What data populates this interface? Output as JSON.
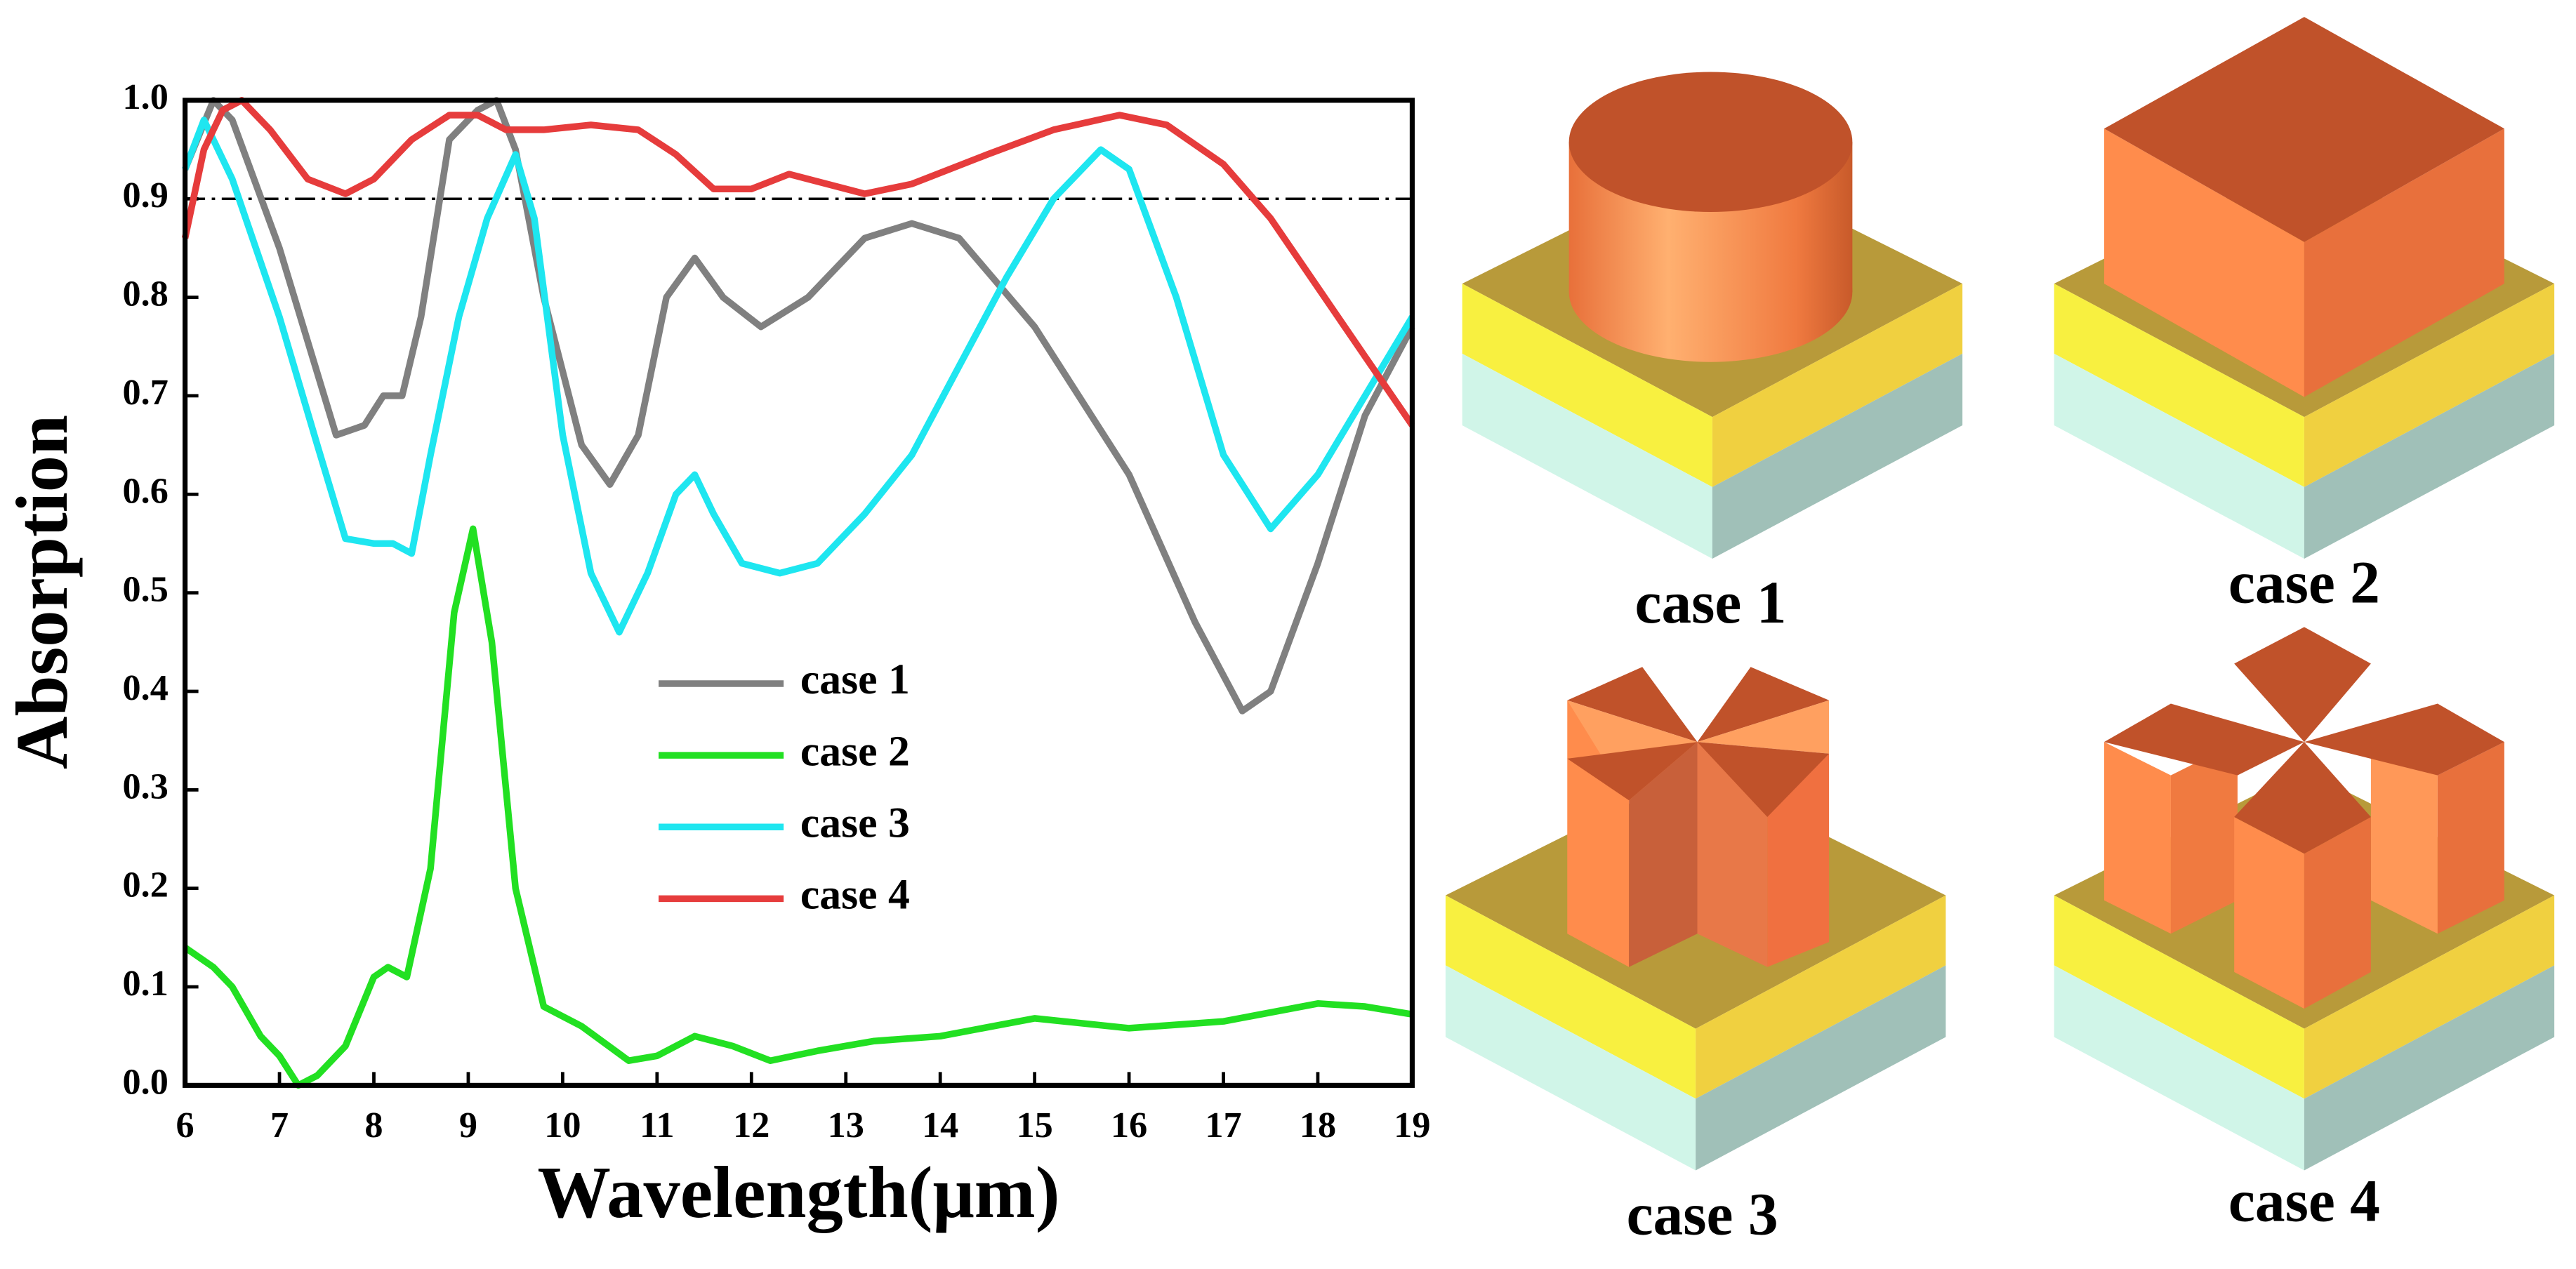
{
  "chart_data": {
    "type": "line",
    "xlabel": "Wavelength(μm)",
    "ylabel": "Absorption",
    "xlim": [
      6,
      19
    ],
    "xticks": [
      6,
      7,
      8,
      9,
      10,
      11,
      12,
      13,
      14,
      15,
      16,
      17,
      18,
      19
    ],
    "ylim": [
      0,
      1
    ],
    "yticks": [
      {
        "value": 0,
        "label": "0.0"
      },
      0.1,
      0.2,
      0.3,
      0.4,
      0.5,
      0.6,
      0.7,
      0.8,
      0.9,
      {
        "value": 1,
        "label": "1.0"
      }
    ],
    "reference_line": 0.9,
    "series": [
      {
        "name": "case 1",
        "color": "#808080",
        "x": [
          6.0,
          6.3,
          6.5,
          7.0,
          7.6,
          7.9,
          8.1,
          8.3,
          8.5,
          8.8,
          9.1,
          9.3,
          9.5,
          9.8,
          10.2,
          10.5,
          10.8,
          11.1,
          11.4,
          11.7,
          12.1,
          12.6,
          13.2,
          13.7,
          14.2,
          15.0,
          16.0,
          16.7,
          17.2,
          17.5,
          18.0,
          18.5,
          19.0
        ],
        "values": [
          0.93,
          1.0,
          0.98,
          0.85,
          0.66,
          0.67,
          0.7,
          0.7,
          0.78,
          0.96,
          0.99,
          1.0,
          0.95,
          0.8,
          0.65,
          0.61,
          0.66,
          0.8,
          0.84,
          0.8,
          0.77,
          0.8,
          0.86,
          0.875,
          0.86,
          0.77,
          0.62,
          0.47,
          0.38,
          0.4,
          0.53,
          0.68,
          0.77
        ]
      },
      {
        "name": "case 2",
        "color": "#22e022",
        "x": [
          6.0,
          6.3,
          6.5,
          6.8,
          7.0,
          7.2,
          7.4,
          7.7,
          8.0,
          8.15,
          8.35,
          8.6,
          8.85,
          9.05,
          9.25,
          9.5,
          9.8,
          10.2,
          10.7,
          11.0,
          11.4,
          11.8,
          12.2,
          12.7,
          13.3,
          14.0,
          15.0,
          16.0,
          17.0,
          18.0,
          18.5,
          19.0
        ],
        "values": [
          0.14,
          0.12,
          0.1,
          0.05,
          0.03,
          0.0,
          0.01,
          0.04,
          0.11,
          0.12,
          0.11,
          0.22,
          0.48,
          0.565,
          0.45,
          0.2,
          0.08,
          0.06,
          0.025,
          0.03,
          0.05,
          0.04,
          0.025,
          0.035,
          0.045,
          0.05,
          0.068,
          0.058,
          0.065,
          0.083,
          0.08,
          0.072
        ]
      },
      {
        "name": "case 3",
        "color": "#1ee6f0",
        "x": [
          6.0,
          6.2,
          6.5,
          7.0,
          7.4,
          7.7,
          8.0,
          8.2,
          8.4,
          8.6,
          8.9,
          9.2,
          9.5,
          9.7,
          10.0,
          10.3,
          10.6,
          10.9,
          11.2,
          11.4,
          11.6,
          11.9,
          12.3,
          12.7,
          13.2,
          13.7,
          14.2,
          14.7,
          15.2,
          15.7,
          16.0,
          16.5,
          17.0,
          17.5,
          18.0,
          18.5,
          19.0
        ],
        "values": [
          0.93,
          0.98,
          0.92,
          0.78,
          0.65,
          0.555,
          0.55,
          0.55,
          0.54,
          0.64,
          0.78,
          0.88,
          0.945,
          0.88,
          0.66,
          0.52,
          0.46,
          0.52,
          0.6,
          0.62,
          0.58,
          0.53,
          0.52,
          0.53,
          0.58,
          0.64,
          0.73,
          0.82,
          0.9,
          0.95,
          0.93,
          0.8,
          0.64,
          0.565,
          0.62,
          0.7,
          0.78
        ]
      },
      {
        "name": "case 4",
        "color": "#e63c3c",
        "x": [
          6.0,
          6.2,
          6.4,
          6.6,
          6.9,
          7.3,
          7.7,
          8.0,
          8.4,
          8.8,
          9.1,
          9.4,
          9.8,
          10.3,
          10.8,
          11.2,
          11.6,
          12.0,
          12.4,
          12.8,
          13.2,
          13.7,
          14.5,
          15.2,
          15.9,
          16.4,
          17.0,
          17.5,
          18.0,
          18.5,
          19.0
        ],
        "values": [
          0.86,
          0.95,
          0.99,
          1.0,
          0.97,
          0.92,
          0.905,
          0.92,
          0.96,
          0.985,
          0.985,
          0.97,
          0.97,
          0.975,
          0.97,
          0.945,
          0.91,
          0.91,
          0.925,
          0.915,
          0.905,
          0.915,
          0.945,
          0.97,
          0.985,
          0.975,
          0.935,
          0.88,
          0.81,
          0.74,
          0.67
        ]
      }
    ]
  },
  "figures": [
    {
      "caption": "case 1"
    },
    {
      "caption": "case 2"
    },
    {
      "caption": "case 3"
    },
    {
      "caption": "case 4"
    }
  ]
}
